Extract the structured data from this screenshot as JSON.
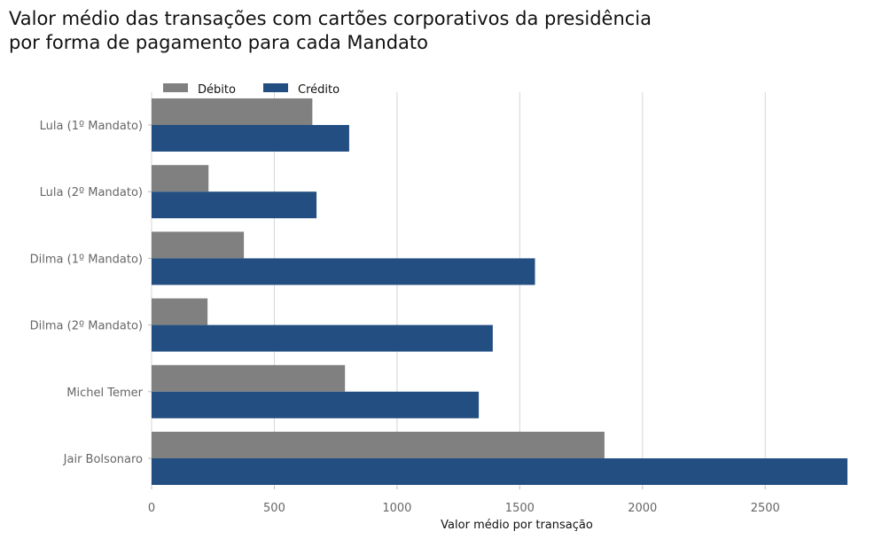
{
  "chart_data": {
    "type": "bar",
    "orientation": "horizontal",
    "title": "Valor médio das transações com cartões corporativos da presidência\npor forma de pagamento para cada Mandato",
    "categories": [
      "Lula (1º Mandato)",
      "Lula (2º Mandato)",
      "Dilma (1º Mandato)",
      "Dilma (2º Mandato)",
      "Michel Temer",
      "Jair Bolsonaro"
    ],
    "series": [
      {
        "name": "Débito",
        "color": "#808080",
        "values": [
          655,
          232,
          376,
          228,
          788,
          1845
        ]
      },
      {
        "name": "Crédito",
        "color": "#224e82",
        "values": [
          805,
          672,
          1562,
          1390,
          1333,
          2835
        ]
      }
    ],
    "xlabel": "Valor médio por transação",
    "ylabel": "",
    "xlim": [
      0,
      2835
    ],
    "xticks": [
      "0",
      "500",
      "1000",
      "1500",
      "2000",
      "2500"
    ],
    "grid": "vertical",
    "legend_position": "top-left"
  }
}
